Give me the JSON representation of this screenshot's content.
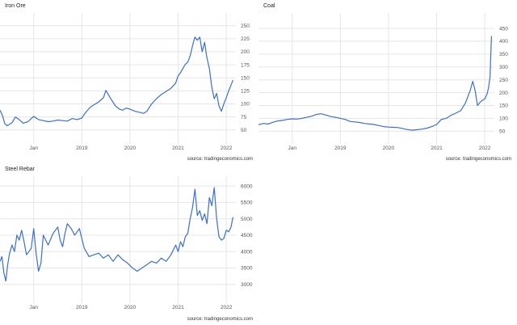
{
  "source_label": "source: tradingeconomics.com",
  "colors": {
    "line": "#3b6fd1",
    "grid": "#e6e6e6",
    "axis_text": "#555555"
  },
  "chart_data": [
    {
      "type": "line",
      "title": "Iron Ore",
      "xlabel": "",
      "ylabel": "",
      "x_ticks": [
        "Jan",
        "2019",
        "2020",
        "2021",
        "2022"
      ],
      "x_tick_pos": [
        2018.0,
        2019.0,
        2020.0,
        2021.0,
        2022.0
      ],
      "xlim": [
        2017.3,
        2022.2
      ],
      "y_ticks": [
        50,
        75,
        100,
        125,
        150,
        175,
        200,
        225,
        250
      ],
      "ylim": [
        28,
        262
      ],
      "grid": true,
      "series": [
        {
          "x": [
            2017.3,
            2017.35,
            2017.4,
            2017.45,
            2017.55,
            2017.62,
            2017.7,
            2017.78,
            2017.88,
            2017.95,
            2018.0,
            2018.1,
            2018.2,
            2018.3,
            2018.4,
            2018.5,
            2018.6,
            2018.7,
            2018.8,
            2018.9,
            2019.0,
            2019.05,
            2019.1,
            2019.18,
            2019.25,
            2019.35,
            2019.45,
            2019.5,
            2019.6,
            2019.7,
            2019.78,
            2019.85,
            2019.92,
            2020.0,
            2020.1,
            2020.2,
            2020.28,
            2020.35,
            2020.45,
            2020.55,
            2020.65,
            2020.75,
            2020.85,
            2020.95,
            2021.0,
            2021.05,
            2021.1,
            2021.15,
            2021.2,
            2021.25,
            2021.3,
            2021.35,
            2021.4,
            2021.45,
            2021.5,
            2021.55,
            2021.6,
            2021.65,
            2021.7,
            2021.75,
            2021.8,
            2021.85,
            2021.9,
            2021.95,
            2022.0,
            2022.05,
            2022.1,
            2022.14
          ],
          "y": [
            88,
            78,
            62,
            58,
            64,
            75,
            70,
            63,
            66,
            72,
            76,
            70,
            68,
            66,
            67,
            69,
            68,
            67,
            72,
            70,
            73,
            80,
            86,
            94,
            98,
            104,
            112,
            126,
            110,
            96,
            90,
            88,
            92,
            90,
            86,
            84,
            82,
            86,
            100,
            110,
            118,
            124,
            130,
            140,
            154,
            160,
            168,
            176,
            180,
            192,
            212,
            228,
            222,
            228,
            200,
            218,
            188,
            168,
            132,
            110,
            120,
            96,
            86,
            100,
            112,
            125,
            136,
            146
          ]
        }
      ]
    },
    {
      "type": "line",
      "title": "Coal",
      "xlabel": "",
      "ylabel": "",
      "x_ticks": [
        "Jan",
        "2019",
        "2020",
        "2021",
        "2022"
      ],
      "x_tick_pos": [
        2018.0,
        2019.0,
        2020.0,
        2021.0,
        2022.0
      ],
      "xlim": [
        2017.3,
        2022.2
      ],
      "y_ticks": [
        50,
        100,
        150,
        200,
        250,
        300,
        350,
        400,
        450
      ],
      "ylim": [
        10,
        485
      ],
      "grid": true,
      "series": [
        {
          "x": [
            2017.3,
            2017.4,
            2017.5,
            2017.6,
            2017.7,
            2017.8,
            2017.9,
            2018.0,
            2018.1,
            2018.2,
            2018.3,
            2018.4,
            2018.5,
            2018.6,
            2018.7,
            2018.8,
            2018.9,
            2019.0,
            2019.1,
            2019.2,
            2019.3,
            2019.4,
            2019.5,
            2019.6,
            2019.7,
            2019.8,
            2019.9,
            2020.0,
            2020.1,
            2020.2,
            2020.3,
            2020.4,
            2020.5,
            2020.6,
            2020.7,
            2020.8,
            2020.9,
            2021.0,
            2021.1,
            2021.2,
            2021.3,
            2021.4,
            2021.5,
            2021.6,
            2021.65,
            2021.7,
            2021.75,
            2021.8,
            2021.85,
            2021.9,
            2021.95,
            2022.0,
            2022.05,
            2022.08,
            2022.11,
            2022.14
          ],
          "y": [
            75,
            80,
            78,
            85,
            90,
            92,
            96,
            98,
            97,
            100,
            104,
            108,
            115,
            118,
            113,
            107,
            104,
            100,
            96,
            88,
            86,
            84,
            80,
            78,
            76,
            72,
            68,
            66,
            65,
            64,
            60,
            56,
            54,
            56,
            58,
            62,
            68,
            76,
            96,
            100,
            112,
            120,
            130,
            160,
            185,
            210,
            244,
            208,
            150,
            162,
            170,
            176,
            196,
            220,
            260,
            420
          ]
        }
      ]
    },
    {
      "type": "line",
      "title": "Steel Rebar",
      "xlabel": "",
      "ylabel": "",
      "x_ticks": [
        "Jan",
        "2019",
        "2020",
        "2021",
        "2022"
      ],
      "x_tick_pos": [
        2018.0,
        2019.0,
        2020.0,
        2021.0,
        2022.0
      ],
      "xlim": [
        2017.3,
        2022.2
      ],
      "y_ticks": [
        3000,
        3500,
        4000,
        4500,
        5000,
        5500,
        6000
      ],
      "ylim": [
        2500,
        6100
      ],
      "grid": true,
      "series": [
        {
          "x": [
            2017.3,
            2017.34,
            2017.38,
            2017.42,
            2017.46,
            2017.5,
            2017.55,
            2017.6,
            2017.65,
            2017.7,
            2017.75,
            2017.8,
            2017.85,
            2017.9,
            2017.95,
            2018.0,
            2018.05,
            2018.1,
            2018.15,
            2018.2,
            2018.3,
            2018.4,
            2018.5,
            2018.55,
            2018.6,
            2018.65,
            2018.7,
            2018.78,
            2018.85,
            2018.95,
            2019.05,
            2019.15,
            2019.25,
            2019.35,
            2019.45,
            2019.55,
            2019.65,
            2019.75,
            2019.85,
            2019.95,
            2020.05,
            2020.15,
            2020.25,
            2020.35,
            2020.45,
            2020.55,
            2020.65,
            2020.75,
            2020.85,
            2020.95,
            2021.0,
            2021.05,
            2021.1,
            2021.15,
            2021.2,
            2021.25,
            2021.3,
            2021.35,
            2021.4,
            2021.45,
            2021.5,
            2021.55,
            2021.6,
            2021.65,
            2021.7,
            2021.75,
            2021.8,
            2021.85,
            2021.9,
            2021.95,
            2022.0,
            2022.05,
            2022.1,
            2022.14
          ],
          "y": [
            3700,
            3850,
            3350,
            3100,
            3600,
            3950,
            4200,
            4000,
            4500,
            4350,
            4650,
            4300,
            3900,
            4000,
            4100,
            4700,
            3950,
            3400,
            3650,
            4500,
            4200,
            4550,
            4750,
            4350,
            4150,
            4550,
            4850,
            4700,
            4500,
            4700,
            4100,
            3850,
            3900,
            3950,
            3800,
            3900,
            3700,
            3900,
            3750,
            3650,
            3500,
            3400,
            3500,
            3600,
            3700,
            3650,
            3800,
            3700,
            3900,
            4200,
            4000,
            4300,
            4150,
            4450,
            4550,
            5000,
            5350,
            5900,
            5100,
            5250,
            4950,
            5150,
            4850,
            5650,
            5400,
            5950,
            5000,
            4450,
            4350,
            4400,
            4650,
            4600,
            4750,
            5050
          ]
        }
      ]
    }
  ]
}
